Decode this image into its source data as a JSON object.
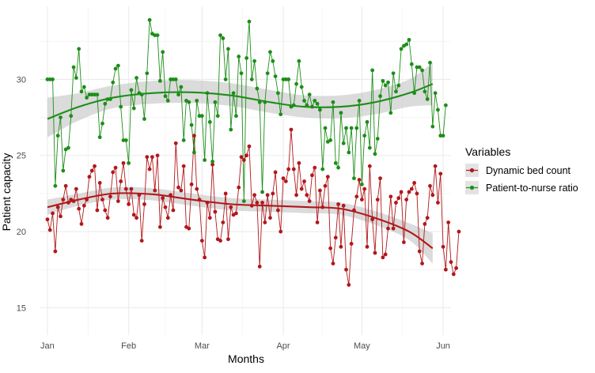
{
  "chart_data": {
    "type": "line",
    "title": "",
    "xlabel": "Months",
    "ylabel": "Patient capacity",
    "x_ticks": [
      {
        "label": "Jan",
        "day": 0
      },
      {
        "label": "Feb",
        "day": 31
      },
      {
        "label": "Mar",
        "day": 59
      },
      {
        "label": "Apr",
        "day": 90
      },
      {
        "label": "May",
        "day": 120
      },
      {
        "label": "Jun",
        "day": 151
      }
    ],
    "y_ticks": [
      15,
      20,
      25,
      30
    ],
    "xlim": [
      -3,
      154
    ],
    "ylim": [
      13.2,
      34.8
    ],
    "grid": true,
    "legend": {
      "title": "Variables",
      "position": "right",
      "entries": [
        "Dynamic bed count",
        "Patient-to-nurse ratio"
      ]
    },
    "series": [
      {
        "name": "Dynamic bed count",
        "color": "#b2171a",
        "smooth_color": "#b2171a",
        "x_start_day": 0,
        "values": [
          20.8,
          20.1,
          21.2,
          18.7,
          21.6,
          21.0,
          22.1,
          23.0,
          21.9,
          22.1,
          22.0,
          22.8,
          21.5,
          20.5,
          21.7,
          22.1,
          23.6,
          24.0,
          24.3,
          21.4,
          23.2,
          22.1,
          21.4,
          20.9,
          22.3,
          23.9,
          24.2,
          22.0,
          23.3,
          24.5,
          22.8,
          21.8,
          22.8,
          21.1,
          20.9,
          22.4,
          19.4,
          21.8,
          24.9,
          24.1,
          24.9,
          22.7,
          25.0,
          20.3,
          22.2,
          21.6,
          20.9,
          22.4,
          21.4,
          25.8,
          22.9,
          22.7,
          24.3,
          20.3,
          20.2,
          23.1,
          26.3,
          22.8,
          22.1,
          19.4,
          18.3,
          21.9,
          20.9,
          24.4,
          21.3,
          19.5,
          19.4,
          20.6,
          22.5,
          19.5,
          21.6,
          21.1,
          21.2,
          22.9,
          24.9,
          24.7,
          25.0,
          25.6,
          21.7,
          22.4,
          21.9,
          17.7,
          21.9,
          20.6,
          22.4,
          20.9,
          22.5,
          23.9,
          21.4,
          20.0,
          23.5,
          23.3,
          24.1,
          26.7,
          24.1,
          22.4,
          24.5,
          22.8,
          23.3,
          22.4,
          22.0,
          23.7,
          24.2,
          20.6,
          22.7,
          21.6,
          23.0,
          23.6,
          18.9,
          17.9,
          19.6,
          21.8,
          19.0,
          21.7,
          17.5,
          16.5,
          19.2,
          21.4,
          22.3,
          23.4,
          22.1,
          22.8,
          19.0,
          24.3,
          20.8,
          18.6,
          22.1,
          23.5,
          18.3,
          18.5,
          20.2,
          22.3,
          20.2,
          21.9,
          22.2,
          22.6,
          19.3,
          22.1,
          22.6,
          22.8,
          23.2,
          22.5,
          18.7,
          17.9,
          20.5,
          20.9,
          23.0,
          22.4,
          24.3,
          21.9,
          23.8,
          19.0,
          17.5,
          20.6,
          18.0,
          17.2,
          17.6,
          20.0
        ],
        "smooth": [
          {
            "day": 0,
            "y": 21.6,
            "lo": 21.1,
            "hi": 22.1
          },
          {
            "day": 12,
            "y": 22.1,
            "lo": 21.7,
            "hi": 22.5
          },
          {
            "day": 25,
            "y": 22.5,
            "lo": 22.1,
            "hi": 22.9
          },
          {
            "day": 40,
            "y": 22.45,
            "lo": 22.05,
            "hi": 22.85
          },
          {
            "day": 55,
            "y": 22.1,
            "lo": 21.7,
            "hi": 22.5
          },
          {
            "day": 70,
            "y": 21.8,
            "lo": 21.4,
            "hi": 22.2
          },
          {
            "day": 85,
            "y": 21.7,
            "lo": 21.3,
            "hi": 22.1
          },
          {
            "day": 100,
            "y": 21.6,
            "lo": 21.2,
            "hi": 22.0
          },
          {
            "day": 112,
            "y": 21.5,
            "lo": 21.1,
            "hi": 21.9
          },
          {
            "day": 125,
            "y": 20.9,
            "lo": 20.45,
            "hi": 21.35
          },
          {
            "day": 138,
            "y": 20.0,
            "lo": 19.45,
            "hi": 20.55
          },
          {
            "day": 147,
            "y": 18.9,
            "lo": 17.9,
            "hi": 19.9
          }
        ]
      },
      {
        "name": "Patient-to-nurse ratio",
        "color": "#1d8e18",
        "smooth_color": "#1d8e18",
        "x_start_day": 0,
        "values": [
          30.0,
          30.0,
          30.0,
          23.0,
          26.3,
          27.5,
          24.0,
          25.4,
          25.5,
          27.6,
          30.8,
          30.1,
          32.0,
          29.2,
          29.5,
          28.8,
          29.0,
          29.0,
          29.0,
          29.0,
          26.2,
          27.1,
          28.4,
          28.7,
          28.7,
          29.8,
          30.7,
          30.9,
          28.2,
          26.0,
          26.0,
          24.5,
          29.3,
          28.1,
          30.1,
          29.1,
          29.0,
          27.4,
          30.4,
          33.9,
          33.0,
          32.9,
          32.9,
          29.9,
          31.8,
          28.9,
          28.6,
          30.0,
          30.0,
          30.0,
          29.0,
          29.5,
          26.0,
          28.6,
          28.5,
          27.0,
          25.2,
          28.6,
          27.6,
          27.6,
          24.7,
          29.1,
          27.2,
          24.6,
          28.5,
          27.6,
          32.9,
          32.7,
          30.0,
          32.0,
          26.7,
          29.1,
          27.6,
          31.5,
          30.4,
          22.0,
          31.4,
          33.8,
          30.0,
          31.2,
          29.4,
          28.5,
          22.6,
          28.5,
          30.4,
          31.8,
          31.2,
          30.2,
          29.1,
          27.7,
          30.0,
          30.0,
          30.0,
          28.2,
          28.3,
          29.7,
          31.2,
          29.5,
          28.6,
          28.3,
          29.0,
          28.2,
          28.6,
          28.4,
          28.0,
          24.1,
          26.8,
          25.9,
          26.0,
          28.5,
          24.5,
          24.2,
          27.8,
          25.8,
          26.8,
          25.2,
          26.8,
          23.5,
          26.8,
          28.6,
          23.1,
          26.3,
          27.2,
          25.5,
          30.6,
          25.1,
          26.1,
          28.9,
          29.9,
          29.6,
          29.8,
          27.8,
          30.4,
          29.2,
          29.6,
          32.0,
          32.2,
          32.3,
          32.6,
          31.0,
          29.1,
          30.8,
          30.8,
          30.6,
          29.2,
          28.7,
          31.1,
          26.9,
          29.1,
          28.0,
          26.3,
          26.3,
          28.3
        ],
        "smooth": [
          {
            "day": 0,
            "y": 27.4,
            "lo": 26.2,
            "hi": 28.8
          },
          {
            "day": 12,
            "y": 28.2,
            "lo": 27.3,
            "hi": 29.1
          },
          {
            "day": 25,
            "y": 28.8,
            "lo": 28.1,
            "hi": 29.6
          },
          {
            "day": 40,
            "y": 29.1,
            "lo": 28.4,
            "hi": 29.9
          },
          {
            "day": 55,
            "y": 29.15,
            "lo": 28.45,
            "hi": 29.95
          },
          {
            "day": 70,
            "y": 28.95,
            "lo": 28.25,
            "hi": 29.75
          },
          {
            "day": 85,
            "y": 28.5,
            "lo": 27.8,
            "hi": 29.3
          },
          {
            "day": 98,
            "y": 28.2,
            "lo": 27.5,
            "hi": 28.95
          },
          {
            "day": 112,
            "y": 28.2,
            "lo": 27.45,
            "hi": 28.95
          },
          {
            "day": 125,
            "y": 28.5,
            "lo": 27.7,
            "hi": 29.3
          },
          {
            "day": 138,
            "y": 29.1,
            "lo": 28.2,
            "hi": 30.0
          },
          {
            "day": 147,
            "y": 29.7,
            "lo": 28.3,
            "hi": 31.1
          }
        ]
      }
    ]
  }
}
